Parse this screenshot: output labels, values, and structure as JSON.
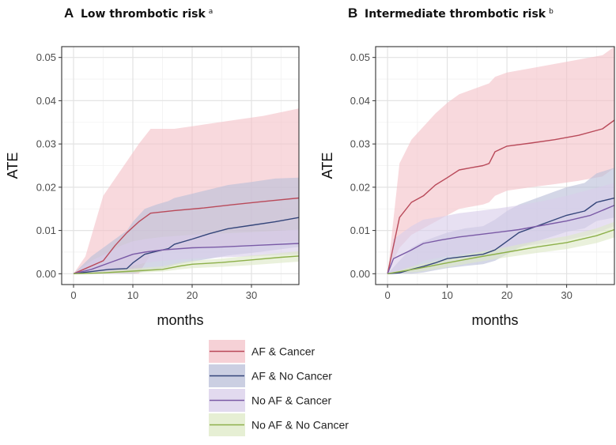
{
  "chart_data": [
    {
      "type": "line",
      "panel_letter": "A",
      "title": "Low thrombotic risk",
      "title_superscript": "a",
      "xlabel": "months",
      "ylabel": "ATE",
      "xlim": [
        -2,
        38
      ],
      "ylim": [
        -0.0025,
        0.0525
      ],
      "xticks": [
        0,
        10,
        20,
        30
      ],
      "yticks": [
        0.0,
        0.01,
        0.02,
        0.03,
        0.04,
        0.05
      ],
      "ytick_labels": [
        "0.00",
        "0.01",
        "0.02",
        "0.03",
        "0.04",
        "0.05"
      ],
      "grid": true,
      "series": [
        {
          "name": "AF & Cancer",
          "color": "#b94a5a",
          "fill": "#f3c2c8",
          "x": [
            0,
            2,
            5,
            7,
            9,
            11,
            13,
            17,
            22,
            27,
            32,
            38
          ],
          "y": [
            0,
            0.0012,
            0.003,
            0.0065,
            0.0095,
            0.012,
            0.014,
            0.0146,
            0.0152,
            0.016,
            0.0167,
            0.0175
          ],
          "lower": [
            0,
            0,
            0,
            0,
            0,
            0,
            0.0045,
            0.0055,
            0.006,
            0.0065,
            0.007,
            0.0075
          ],
          "upper": [
            0,
            0.004,
            0.018,
            0.022,
            0.026,
            0.03,
            0.0335,
            0.0335,
            0.0345,
            0.0355,
            0.0365,
            0.0382
          ]
        },
        {
          "name": "AF & No Cancer",
          "color": "#34457a",
          "fill": "#b9bfd8",
          "x": [
            0,
            3,
            6,
            9,
            10,
            12,
            14,
            16,
            17,
            20,
            23,
            26,
            30,
            34,
            38
          ],
          "y": [
            0,
            0.0005,
            0.001,
            0.0012,
            0.0025,
            0.0045,
            0.0052,
            0.0058,
            0.0068,
            0.008,
            0.0093,
            0.0104,
            0.0112,
            0.012,
            0.013
          ],
          "lower": [
            0,
            0,
            0,
            0,
            0,
            0.0005,
            0.001,
            0.0015,
            0.002,
            0.0028,
            0.0035,
            0.0042,
            0.0048,
            0.0055,
            0.0062
          ],
          "upper": [
            0,
            0.004,
            0.007,
            0.01,
            0.012,
            0.015,
            0.016,
            0.0168,
            0.0175,
            0.0185,
            0.0195,
            0.0205,
            0.0212,
            0.022,
            0.0222
          ]
        },
        {
          "name": "No AF & Cancer",
          "color": "#7a5aa6",
          "fill": "#d8cdea",
          "x": [
            0,
            3,
            6,
            8,
            10,
            12,
            15,
            20,
            25,
            30,
            38
          ],
          "y": [
            0,
            0.001,
            0.0025,
            0.0035,
            0.0045,
            0.005,
            0.0055,
            0.006,
            0.0062,
            0.0065,
            0.007
          ],
          "lower": [
            0,
            0,
            0.0005,
            0.001,
            0.0018,
            0.0025,
            0.003,
            0.0035,
            0.0038,
            0.004,
            0.0045
          ],
          "upper": [
            0,
            0.003,
            0.005,
            0.0065,
            0.0075,
            0.008,
            0.0085,
            0.009,
            0.0093,
            0.0096,
            0.0102
          ]
        },
        {
          "name": "No AF & No Cancer",
          "color": "#8db04a",
          "fill": "#dde9c6",
          "x": [
            0,
            5,
            10,
            15,
            18,
            20,
            25,
            30,
            35,
            38
          ],
          "y": [
            0,
            0.0002,
            0.0006,
            0.001,
            0.0018,
            0.0022,
            0.0026,
            0.0032,
            0.0038,
            0.0041
          ],
          "lower": [
            0,
            0,
            0.0002,
            0.0005,
            0.001,
            0.0013,
            0.0016,
            0.002,
            0.0025,
            0.0028
          ],
          "upper": [
            0,
            0.0006,
            0.0012,
            0.0017,
            0.0026,
            0.003,
            0.0035,
            0.0042,
            0.0048,
            0.0052
          ]
        }
      ]
    },
    {
      "type": "line",
      "panel_letter": "B",
      "title": "Intermediate thrombotic risk",
      "title_superscript": "b",
      "xlabel": "months",
      "ylabel": "ATE",
      "xlim": [
        -2,
        38
      ],
      "ylim": [
        -0.0025,
        0.0525
      ],
      "xticks": [
        0,
        10,
        20,
        30
      ],
      "yticks": [
        0.0,
        0.01,
        0.02,
        0.03,
        0.04,
        0.05
      ],
      "ytick_labels": [
        "0.00",
        "0.01",
        "0.02",
        "0.03",
        "0.04",
        "0.05"
      ],
      "grid": true,
      "series": [
        {
          "name": "AF & Cancer",
          "color": "#b94a5a",
          "fill": "#f3c2c8",
          "x": [
            0,
            2,
            4,
            6,
            8,
            10,
            12,
            14,
            16,
            17,
            18,
            20,
            24,
            28,
            32,
            36,
            38
          ],
          "y": [
            0,
            0.013,
            0.0165,
            0.018,
            0.0205,
            0.0222,
            0.024,
            0.0245,
            0.025,
            0.0255,
            0.0282,
            0.0295,
            0.0302,
            0.031,
            0.032,
            0.0335,
            0.0355
          ],
          "lower": [
            0,
            0.006,
            0.009,
            0.0105,
            0.012,
            0.0135,
            0.015,
            0.0155,
            0.016,
            0.0165,
            0.018,
            0.0192,
            0.02,
            0.0207,
            0.0215,
            0.0225,
            0.0245
          ],
          "upper": [
            0,
            0.0255,
            0.031,
            0.034,
            0.037,
            0.0395,
            0.0415,
            0.0425,
            0.0435,
            0.044,
            0.0455,
            0.0465,
            0.0475,
            0.0485,
            0.0495,
            0.0505,
            0.0525
          ]
        },
        {
          "name": "AF & No Cancer",
          "color": "#34457a",
          "fill": "#b9bfd8",
          "x": [
            0,
            2,
            4,
            6,
            8,
            10,
            13,
            16,
            18,
            20,
            22,
            25,
            28,
            30,
            33,
            35,
            38
          ],
          "y": [
            0,
            0.0002,
            0.001,
            0.0017,
            0.0025,
            0.0035,
            0.004,
            0.0045,
            0.0055,
            0.0075,
            0.0095,
            0.011,
            0.0125,
            0.0135,
            0.0145,
            0.0165,
            0.0175
          ],
          "lower": [
            0,
            0,
            0,
            0.0003,
            0.0008,
            0.0013,
            0.0018,
            0.0022,
            0.003,
            0.0045,
            0.006,
            0.0075,
            0.0088,
            0.0097,
            0.0105,
            0.0122,
            0.013
          ],
          "upper": [
            0,
            0.003,
            0.006,
            0.0075,
            0.0085,
            0.0095,
            0.0105,
            0.011,
            0.0125,
            0.0145,
            0.016,
            0.0175,
            0.019,
            0.02,
            0.021,
            0.0232,
            0.0245
          ]
        },
        {
          "name": "No AF & Cancer",
          "color": "#7a5aa6",
          "fill": "#d8cdea",
          "x": [
            0,
            1,
            4,
            6,
            9,
            12,
            15,
            18,
            22,
            26,
            30,
            34,
            38
          ],
          "y": [
            0,
            0.0035,
            0.0055,
            0.007,
            0.0078,
            0.0085,
            0.009,
            0.0095,
            0.0102,
            0.0112,
            0.0122,
            0.0135,
            0.0158
          ],
          "lower": [
            0,
            0,
            0.0015,
            0.003,
            0.0038,
            0.0045,
            0.005,
            0.0055,
            0.0062,
            0.007,
            0.0078,
            0.009,
            0.011
          ],
          "upper": [
            0,
            0.008,
            0.011,
            0.0125,
            0.0132,
            0.014,
            0.0145,
            0.015,
            0.0158,
            0.0168,
            0.018,
            0.0195,
            0.021
          ]
        },
        {
          "name": "No AF & No Cancer",
          "color": "#8db04a",
          "fill": "#dde9c6",
          "x": [
            0,
            5,
            10,
            15,
            20,
            25,
            30,
            35,
            38
          ],
          "y": [
            0,
            0.0012,
            0.0025,
            0.0038,
            0.005,
            0.0062,
            0.0072,
            0.0088,
            0.0102
          ],
          "lower": [
            0,
            0.0004,
            0.0015,
            0.0027,
            0.0038,
            0.0048,
            0.0057,
            0.0071,
            0.0084
          ],
          "upper": [
            0,
            0.002,
            0.0035,
            0.0049,
            0.0062,
            0.0076,
            0.0087,
            0.0105,
            0.012
          ]
        }
      ]
    }
  ],
  "legend": {
    "placement": "bottom-center",
    "items": [
      {
        "label": "AF & Cancer",
        "color": "#b94a5a",
        "fill": "#f3c2c8"
      },
      {
        "label": "AF & No Cancer",
        "color": "#34457a",
        "fill": "#b9bfd8"
      },
      {
        "label": "No AF & Cancer",
        "color": "#7a5aa6",
        "fill": "#d8cdea"
      },
      {
        "label": "No AF & No Cancer",
        "color": "#8db04a",
        "fill": "#dde9c6"
      }
    ]
  }
}
